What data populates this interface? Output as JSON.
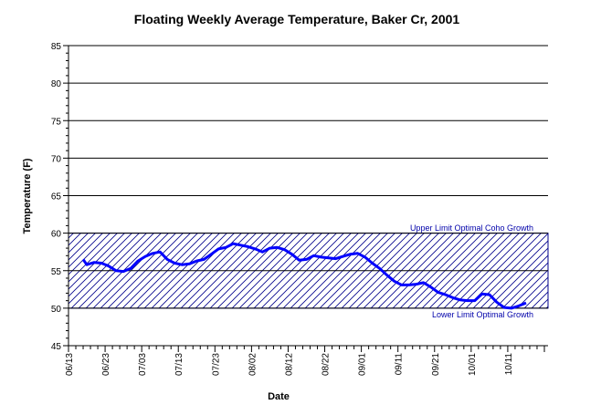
{
  "chart_data": {
    "type": "line",
    "title": "Floating Weekly Average Temperature, Baker Cr, 2001",
    "xlabel": "Date",
    "ylabel": "Temperature (F)",
    "ylim": [
      45,
      85
    ],
    "yticks": [
      45,
      50,
      55,
      60,
      65,
      70,
      75,
      80,
      85
    ],
    "xlim": [
      "2001-06-13",
      "2001-10-22"
    ],
    "xticks": [
      "06/13",
      "06/23",
      "07/03",
      "07/13",
      "07/23",
      "08/02",
      "08/12",
      "08/22",
      "09/01",
      "09/11",
      "09/21",
      "10/01",
      "10/11"
    ],
    "grid": "horizontal",
    "colors": {
      "series": "#0000ff",
      "band": "#00008b",
      "grid": "#000000"
    },
    "band": {
      "lower": 50,
      "upper": 60,
      "upper_label": "Upper Limit Optimal Coho Growth",
      "lower_label": "Lower Limit Optimal Growth",
      "pattern": "diagonal-hatch"
    },
    "series": [
      {
        "x": [
          "2001-06-17",
          "2001-06-18",
          "2001-06-20",
          "2001-06-22",
          "2001-06-24",
          "2001-06-26",
          "2001-06-28",
          "2001-06-30",
          "2001-07-02",
          "2001-07-04",
          "2001-07-06",
          "2001-07-08",
          "2001-07-10",
          "2001-07-12",
          "2001-07-14",
          "2001-07-16",
          "2001-07-18",
          "2001-07-20",
          "2001-07-22",
          "2001-07-24",
          "2001-07-26",
          "2001-07-28",
          "2001-07-30",
          "2001-08-01",
          "2001-08-03",
          "2001-08-05",
          "2001-08-07",
          "2001-08-09",
          "2001-08-11",
          "2001-08-13",
          "2001-08-15",
          "2001-08-17",
          "2001-08-19",
          "2001-08-21",
          "2001-08-23",
          "2001-08-25",
          "2001-08-27",
          "2001-08-29",
          "2001-08-31",
          "2001-09-02",
          "2001-09-04",
          "2001-09-06",
          "2001-09-08",
          "2001-09-10",
          "2001-09-12",
          "2001-09-14",
          "2001-09-16",
          "2001-09-18",
          "2001-09-20",
          "2001-09-22",
          "2001-09-24",
          "2001-09-26",
          "2001-09-28",
          "2001-09-30",
          "2001-10-02",
          "2001-10-04",
          "2001-10-06",
          "2001-10-08",
          "2001-10-10",
          "2001-10-12",
          "2001-10-14",
          "2001-10-16"
        ],
        "values": [
          56.5,
          55.8,
          56.1,
          56.0,
          55.6,
          55.0,
          54.9,
          55.3,
          56.3,
          56.9,
          57.3,
          57.5,
          56.5,
          56.0,
          55.8,
          55.9,
          56.3,
          56.5,
          57.2,
          57.9,
          58.1,
          58.6,
          58.4,
          58.2,
          57.9,
          57.5,
          58.0,
          58.1,
          57.8,
          57.2,
          56.4,
          56.5,
          57.0,
          56.8,
          56.7,
          56.6,
          56.9,
          57.2,
          57.3,
          56.8,
          56.0,
          55.3,
          54.4,
          53.6,
          53.1,
          53.1,
          53.2,
          53.4,
          52.8,
          52.1,
          51.8,
          51.4,
          51.1,
          51.0,
          51.0,
          51.9,
          51.8,
          50.8,
          50.1,
          50.0,
          50.3,
          50.7
        ]
      }
    ]
  }
}
